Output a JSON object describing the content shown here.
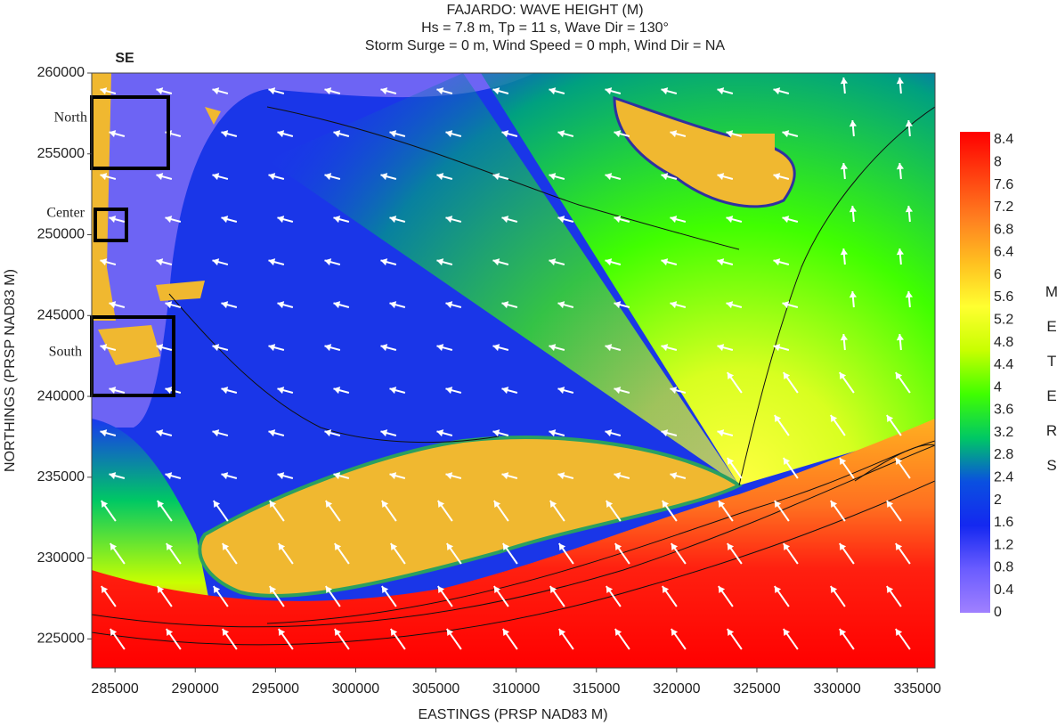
{
  "title": [
    "FAJARDO: WAVE HEIGHT (M)",
    "Hs = 7.8 m, Tp = 11 s, Wave Dir = 130°",
    "Storm Surge = 0 m, Wind Speed = 0 mph, Wind Dir = NA"
  ],
  "map": {
    "corner_label": "SE",
    "regions": [
      "North",
      "Center",
      "South"
    ],
    "x_axis": {
      "label": "EASTINGS (PRSP NAD83 M)",
      "lim": [
        283550,
        336100
      ],
      "ticks": [
        285000,
        290000,
        295000,
        300000,
        305000,
        310000,
        315000,
        320000,
        325000,
        330000,
        335000
      ]
    },
    "y_axis": {
      "label": "NORTHINGS (PRSP NAD83 M)",
      "lim": [
        223200,
        260000
      ],
      "ticks": [
        225000,
        230000,
        235000,
        240000,
        245000,
        250000,
        255000,
        260000
      ]
    },
    "colorbar": {
      "title": "METERS",
      "lim": [
        0,
        8.4
      ],
      "ticks": [
        0,
        0.4,
        0.8,
        1.2,
        1.6,
        2,
        2.4,
        2.8,
        3.2,
        3.6,
        4,
        4.4,
        4.8,
        5.2,
        5.6,
        6,
        6.4,
        6.8,
        7.2,
        7.6,
        8,
        8.4
      ],
      "colors": [
        "#a080ff",
        "#6a5cff",
        "#1428f0",
        "#0a50e0",
        "#00c864",
        "#40ff00",
        "#c8ff00",
        "#ffff30",
        "#ffc020",
        "#ff8020",
        "#ff4010",
        "#ff0000"
      ]
    }
  }
}
